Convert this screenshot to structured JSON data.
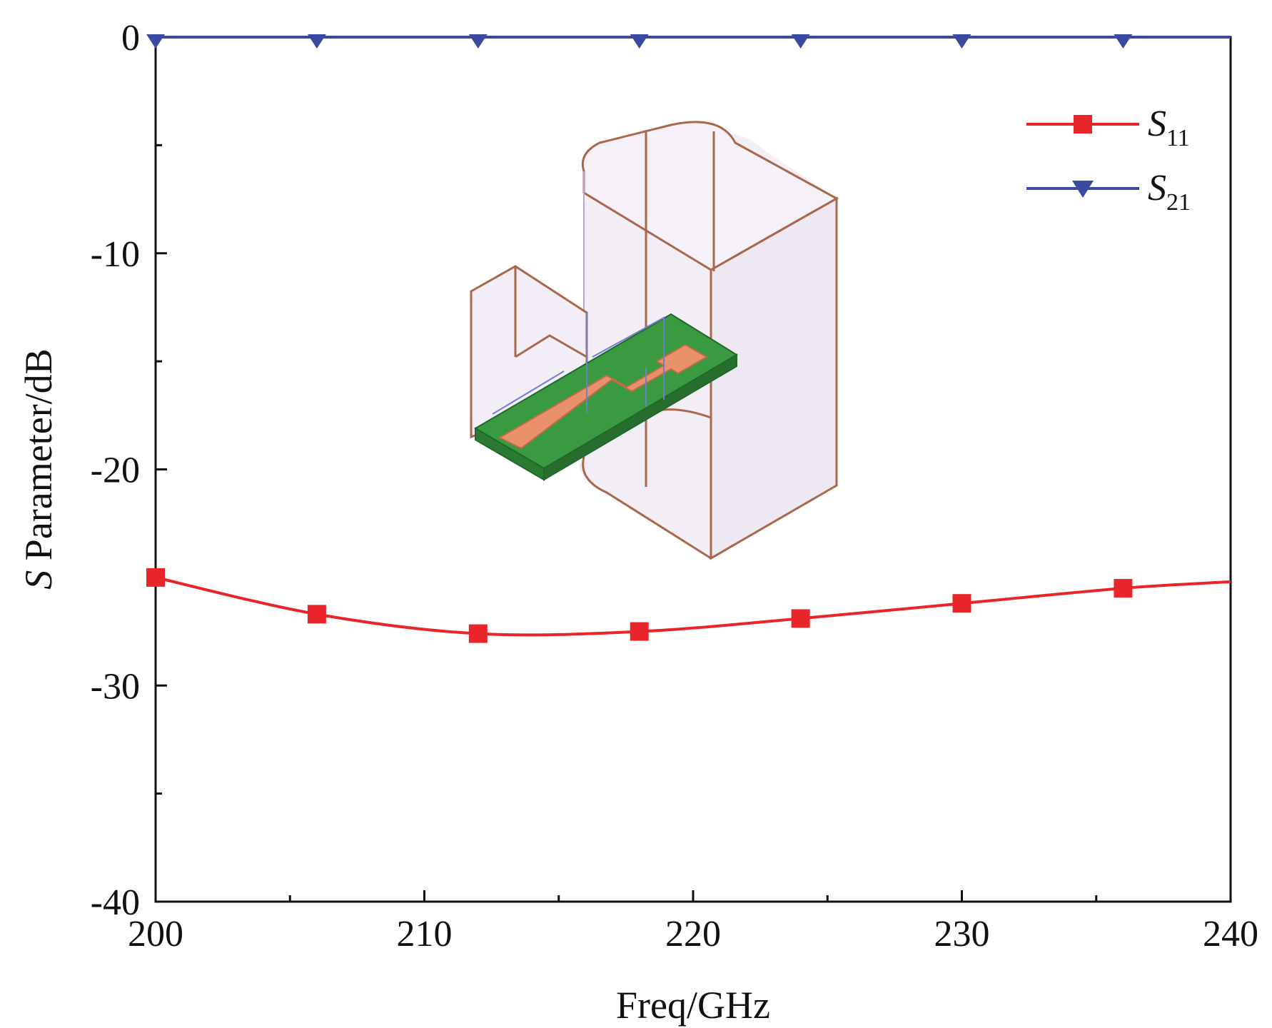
{
  "chart_data": {
    "type": "line",
    "xlabel": "Freq/GHz",
    "ylabel_italic": "S",
    "ylabel_rest": " Parameter/dB",
    "xlim": [
      200,
      240
    ],
    "ylim": [
      -40,
      0
    ],
    "xticks": [
      200,
      210,
      220,
      230,
      240
    ],
    "yticks": [
      0,
      -10,
      -20,
      -30,
      -40
    ],
    "grid": false,
    "legend_position": "top-right",
    "series": [
      {
        "name_main": "S",
        "name_sub": "11",
        "color": "#e8262a",
        "marker": "square",
        "x": [
          200,
          206,
          212,
          218,
          224,
          230,
          236,
          240
        ],
        "y": [
          -25.0,
          -26.7,
          -27.6,
          -27.5,
          -26.9,
          -26.2,
          -25.5,
          -25.2
        ]
      },
      {
        "name_main": "S",
        "name_sub": "21",
        "color": "#3a4aa0",
        "marker": "triangle-down",
        "x": [
          200,
          206,
          212,
          218,
          224,
          230,
          236,
          240
        ],
        "y": [
          0,
          0,
          0,
          0,
          0,
          0,
          0,
          0
        ]
      }
    ],
    "inset": "waveguide-microstrip-transition-model"
  }
}
